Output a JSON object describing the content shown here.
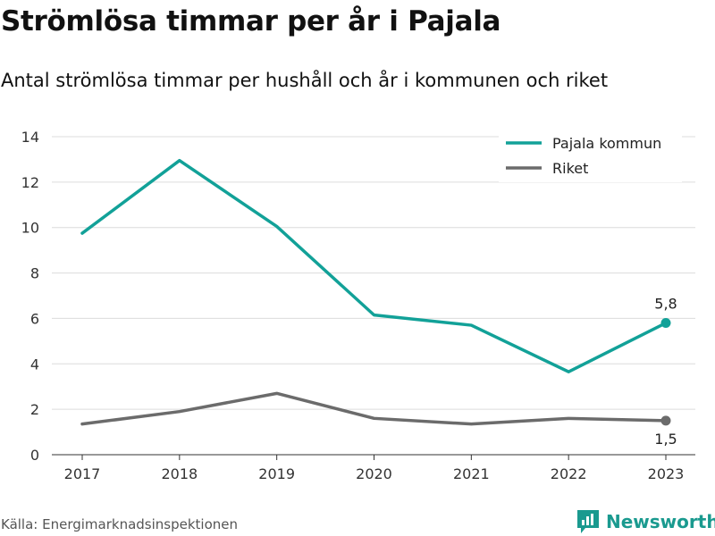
{
  "title": "Strömlösa timmar per år i Pajala",
  "subtitle": "Antal strömlösa timmar per hushåll och år i kommunen och riket",
  "source": "Källa: Energimarknadsinspektionen",
  "brand": {
    "name": "Newsworthy",
    "icon": "newsworthy-logo-icon",
    "color": "#1a9a8f"
  },
  "chart_data": {
    "type": "line",
    "x": [
      "2017",
      "2018",
      "2019",
      "2020",
      "2021",
      "2022",
      "2023"
    ],
    "ylim": [
      0,
      14
    ],
    "yticks": [
      "0",
      "2",
      "4",
      "6",
      "8",
      "10",
      "12",
      "14"
    ],
    "grid": true,
    "legend_position": "top-right",
    "series": [
      {
        "name": "Pajala kommun",
        "color": "#12a198",
        "values": [
          9.75,
          12.95,
          10.05,
          6.15,
          5.7,
          3.65,
          5.8
        ],
        "end_label": "5,8"
      },
      {
        "name": "Riket",
        "color": "#6b6b6b",
        "values": [
          1.35,
          1.9,
          2.7,
          1.6,
          1.35,
          1.6,
          1.5
        ],
        "end_label": "1,5"
      }
    ]
  }
}
